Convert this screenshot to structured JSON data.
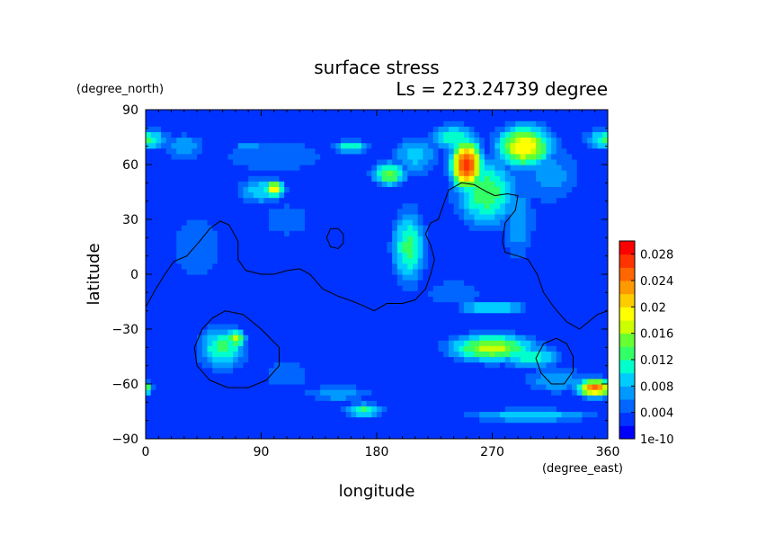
{
  "chart_data": {
    "type": "heatmap",
    "title": "surface stress",
    "subtitle": "Ls = 223.24739 degree",
    "xlabel": "longitude",
    "ylabel": "latitude",
    "x_units": "(degree_east)",
    "y_units": "(degree_north)",
    "xlim": [
      0,
      360
    ],
    "ylim": [
      -90,
      90
    ],
    "x_ticks": [
      0,
      90,
      180,
      270,
      360
    ],
    "y_ticks": [
      90,
      60,
      30,
      0,
      -30,
      -60,
      -90
    ],
    "x_tick_labels": [
      "0",
      "90",
      "180",
      "270",
      "360"
    ],
    "y_tick_labels": [
      "90",
      "60",
      "30",
      "0",
      "−30",
      "−60",
      "−90"
    ],
    "colorbar": {
      "min": 0,
      "max": 0.03,
      "tick_values": [
        0,
        0.004,
        0.008,
        0.012,
        0.016,
        0.02,
        0.024,
        0.028
      ],
      "tick_labels": [
        "1e-10",
        "0.004",
        "0.008",
        "0.012",
        "0.016",
        "0.02",
        "0.024",
        "0.028"
      ],
      "colors": [
        "#0000ff",
        "#0033ff",
        "#0066ff",
        "#0099ff",
        "#00ccff",
        "#00ffcc",
        "#33ff66",
        "#66ff33",
        "#ccff00",
        "#ffff00",
        "#ffcc00",
        "#ff9900",
        "#ff6600",
        "#ff3300",
        "#ff0000"
      ]
    },
    "background_value": 0.002,
    "features": [
      {
        "lon": 0,
        "lat": 74,
        "wlon": 18,
        "wlat": 6,
        "value": 0.013
      },
      {
        "lon": 360,
        "lat": 74,
        "wlon": 18,
        "wlat": 6,
        "value": 0.013
      },
      {
        "lon": 30,
        "lat": 70,
        "wlon": 18,
        "wlat": 8,
        "value": 0.008
      },
      {
        "lon": 100,
        "lat": 65,
        "wlon": 55,
        "wlat": 12,
        "value": 0.006
      },
      {
        "lon": 100,
        "lat": 47,
        "wlon": 8,
        "wlat": 5,
        "value": 0.02
      },
      {
        "lon": 90,
        "lat": 46,
        "wlon": 20,
        "wlat": 8,
        "value": 0.01
      },
      {
        "lon": 160,
        "lat": 70,
        "wlon": 15,
        "wlat": 4,
        "value": 0.012
      },
      {
        "lon": 80,
        "lat": 70,
        "wlon": 12,
        "wlat": 4,
        "value": 0.008
      },
      {
        "lon": 190,
        "lat": 55,
        "wlon": 14,
        "wlat": 7,
        "value": 0.015
      },
      {
        "lon": 210,
        "lat": 65,
        "wlon": 20,
        "wlat": 12,
        "value": 0.009
      },
      {
        "lon": 250,
        "lat": 60,
        "wlon": 12,
        "wlat": 14,
        "value": 0.028
      },
      {
        "lon": 265,
        "lat": 45,
        "wlon": 25,
        "wlat": 20,
        "value": 0.014
      },
      {
        "lon": 240,
        "lat": 75,
        "wlon": 20,
        "wlat": 8,
        "value": 0.012
      },
      {
        "lon": 295,
        "lat": 70,
        "wlon": 22,
        "wlat": 12,
        "value": 0.02
      },
      {
        "lon": 315,
        "lat": 55,
        "wlon": 30,
        "wlat": 20,
        "value": 0.007
      },
      {
        "lon": 290,
        "lat": 30,
        "wlon": 15,
        "wlat": 25,
        "value": 0.008
      },
      {
        "lon": 205,
        "lat": 15,
        "wlon": 14,
        "wlat": 22,
        "value": 0.013
      },
      {
        "lon": 110,
        "lat": 30,
        "wlon": 25,
        "wlat": 12,
        "value": 0.006
      },
      {
        "lon": 40,
        "lat": 15,
        "wlon": 25,
        "wlat": 25,
        "value": 0.006
      },
      {
        "lon": 60,
        "lat": -40,
        "wlon": 20,
        "wlat": 12,
        "value": 0.013
      },
      {
        "lon": 70,
        "lat": -35,
        "wlon": 8,
        "wlat": 5,
        "value": 0.017
      },
      {
        "lon": 270,
        "lat": -40,
        "wlon": 35,
        "wlat": 8,
        "value": 0.017
      },
      {
        "lon": 250,
        "lat": -40,
        "wlon": 18,
        "wlat": 8,
        "value": 0.01
      },
      {
        "lon": 300,
        "lat": -45,
        "wlon": 25,
        "wlat": 7,
        "value": 0.012
      },
      {
        "lon": 350,
        "lat": -62,
        "wlon": 14,
        "wlat": 5,
        "value": 0.025
      },
      {
        "lon": 320,
        "lat": -58,
        "wlon": 30,
        "wlat": 8,
        "value": 0.008
      },
      {
        "lon": 0,
        "lat": -62,
        "wlon": 6,
        "wlat": 4,
        "value": 0.014
      },
      {
        "lon": 170,
        "lat": -74,
        "wlon": 15,
        "wlat": 4,
        "value": 0.013
      },
      {
        "lon": 150,
        "lat": -65,
        "wlon": 30,
        "wlat": 5,
        "value": 0.008
      },
      {
        "lon": 270,
        "lat": -18,
        "wlon": 30,
        "wlat": 4,
        "value": 0.011
      },
      {
        "lon": 300,
        "lat": -77,
        "wlon": 55,
        "wlat": 4,
        "value": 0.01
      },
      {
        "lon": 240,
        "lat": -10,
        "wlon": 30,
        "wlat": 10,
        "value": 0.006
      },
      {
        "lon": 110,
        "lat": -55,
        "wlon": 25,
        "wlat": 10,
        "value": 0.006
      }
    ],
    "contour_paths": [
      [
        [
          0,
          -18
        ],
        [
          8,
          -8
        ],
        [
          15,
          0
        ],
        [
          22,
          7
        ],
        [
          32,
          10
        ],
        [
          42,
          18
        ],
        [
          50,
          25
        ],
        [
          58,
          29
        ],
        [
          65,
          27
        ],
        [
          72,
          18
        ],
        [
          72,
          8
        ],
        [
          78,
          2
        ],
        [
          90,
          0
        ],
        [
          100,
          0
        ],
        [
          110,
          2
        ],
        [
          120,
          3
        ],
        [
          128,
          0
        ],
        [
          138,
          -8
        ],
        [
          150,
          -12
        ],
        [
          162,
          -15
        ],
        [
          172,
          -18
        ],
        [
          178,
          -20
        ],
        [
          188,
          -16
        ],
        [
          200,
          -16
        ],
        [
          210,
          -14
        ],
        [
          218,
          -8
        ],
        [
          222,
          0
        ],
        [
          225,
          8
        ],
        [
          222,
          16
        ],
        [
          218,
          22
        ],
        [
          222,
          28
        ],
        [
          228,
          30
        ],
        [
          232,
          38
        ],
        [
          236,
          46
        ],
        [
          246,
          50
        ],
        [
          256,
          49
        ],
        [
          266,
          45
        ],
        [
          272,
          43
        ],
        [
          282,
          44
        ],
        [
          290,
          43
        ],
        [
          288,
          35
        ],
        [
          280,
          28
        ],
        [
          278,
          18
        ],
        [
          280,
          12
        ],
        [
          290,
          10
        ],
        [
          298,
          8
        ],
        [
          305,
          0
        ],
        [
          310,
          -10
        ],
        [
          318,
          -18
        ],
        [
          328,
          -26
        ],
        [
          338,
          -30
        ],
        [
          345,
          -26
        ],
        [
          352,
          -22
        ],
        [
          360,
          -20
        ]
      ],
      [
        [
          62,
          -20
        ],
        [
          76,
          -22
        ],
        [
          90,
          -30
        ],
        [
          104,
          -40
        ],
        [
          104,
          -50
        ],
        [
          94,
          -58
        ],
        [
          80,
          -62
        ],
        [
          64,
          -62
        ],
        [
          50,
          -58
        ],
        [
          40,
          -50
        ],
        [
          38,
          -40
        ],
        [
          44,
          -30
        ],
        [
          52,
          -24
        ],
        [
          62,
          -20
        ]
      ],
      [
        [
          144,
          25
        ],
        [
          150,
          25
        ],
        [
          154,
          22
        ],
        [
          154,
          17
        ],
        [
          150,
          14
        ],
        [
          144,
          15
        ],
        [
          141,
          20
        ],
        [
          144,
          25
        ]
      ],
      [
        [
          320,
          -35
        ],
        [
          328,
          -38
        ],
        [
          333,
          -45
        ],
        [
          333,
          -53
        ],
        [
          326,
          -60
        ],
        [
          316,
          -60
        ],
        [
          308,
          -54
        ],
        [
          304,
          -46
        ],
        [
          310,
          -38
        ],
        [
          320,
          -35
        ]
      ]
    ]
  }
}
